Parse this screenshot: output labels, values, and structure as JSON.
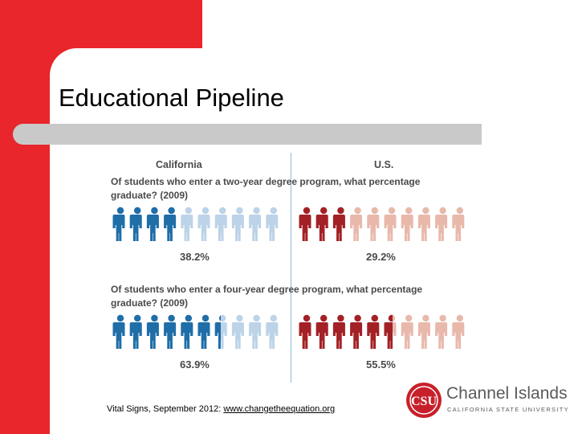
{
  "slide": {
    "title": "Educational Pipeline"
  },
  "infographic": {
    "headers": {
      "left": "California",
      "right": "U.S."
    },
    "sections": [
      {
        "question": "Of students who enter a two-year degree program, what percentage graduate? (2009)",
        "left": {
          "value_label": "38.2%",
          "fraction": 0.382
        },
        "right": {
          "value_label": "29.2%",
          "fraction": 0.292
        }
      },
      {
        "question": "Of students who enter a four-year degree program, what percentage graduate? (2009)",
        "left": {
          "value_label": "63.9%",
          "fraction": 0.639
        },
        "right": {
          "value_label": "55.5%",
          "fraction": 0.555
        }
      }
    ],
    "figures_per_row": 10,
    "colors": {
      "california_filled": "#1f6ea8",
      "california_empty": "#bcd3e8",
      "us_filled": "#a32126",
      "us_empty": "#e8b9ab"
    }
  },
  "source": {
    "prefix": "Vital Signs, September 2012:  ",
    "url_text": "www.changetheequation.org"
  },
  "logo": {
    "mark_text": "CSU",
    "name": "Channel Islands",
    "subtitle": "CALIFORNIA STATE UNIVERSITY"
  },
  "theme": {
    "accent_red": "#e8262b",
    "bar_gray": "#c9c9c9"
  }
}
